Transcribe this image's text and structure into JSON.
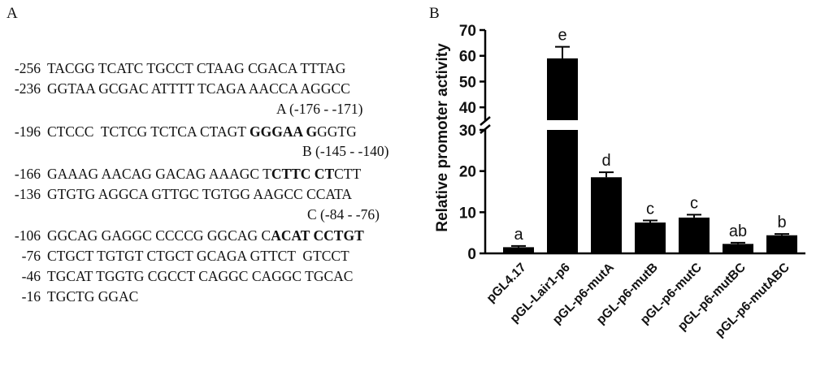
{
  "panel_a": {
    "label": "A",
    "lines": [
      {
        "pos": "-256",
        "segments": [
          {
            "t": "TACGG TCATC TGCCT CTAAG CGACA TTTAG",
            "b": false
          }
        ]
      },
      {
        "pos": "-236",
        "segments": [
          {
            "t": "GGTAA GCGAC ATTTT TCAGA AACCA AGGCC",
            "b": false
          }
        ]
      },
      {
        "pos": "-196",
        "segments": [
          {
            "t": "CTCCC  TCTCG TCTCA CTAGT ",
            "b": false
          },
          {
            "t": "GGGAA G",
            "b": true
          },
          {
            "t": "GGTG",
            "b": false
          }
        ]
      },
      {
        "pos": "-166",
        "segments": [
          {
            "t": "GAAAG AACAG GACAG AAAGC T",
            "b": false
          },
          {
            "t": "CTTC CT",
            "b": true
          },
          {
            "t": "CTT",
            "b": false
          }
        ]
      },
      {
        "pos": "-136",
        "segments": [
          {
            "t": "GTGTG AGGCA GTTGC TGTGG AAGCC CCATA",
            "b": false
          }
        ]
      },
      {
        "pos": "-106",
        "segments": [
          {
            "t": "GGCAG GAGGC CCCCG GGCAG C",
            "b": false
          },
          {
            "t": "ACAT CCTGT",
            "b": true
          }
        ]
      },
      {
        "pos": "-76",
        "segments": [
          {
            "t": "CTGCT TGTGT CTGCT GCAGA GTTCT  GTCCT",
            "b": false
          }
        ]
      },
      {
        "pos": "-46",
        "segments": [
          {
            "t": "TGCAT TGGTG CGCCT CAGGC CAGGC TGCAC",
            "b": false
          }
        ]
      },
      {
        "pos": "-16",
        "segments": [
          {
            "t": "TGCTG GGAC",
            "b": false
          }
        ]
      }
    ],
    "site_notes": [
      "A (-176 - -171)",
      "B (-145 - -140)",
      "C (-84 - -76)"
    ]
  },
  "panel_b": {
    "label": "B"
  },
  "chart_data": {
    "type": "bar",
    "ylabel": "Relative promoter activity",
    "categories": [
      "pGL4.17",
      "pGL-Lair1-p6",
      "pGL-p6-mutA",
      "pGL-p6-mutB",
      "pGL-p6-mutC",
      "pGL-p6-mutBC",
      "pGL-p6-mutABC"
    ],
    "values": [
      1.5,
      59,
      18.5,
      7.5,
      8.7,
      2.3,
      4.4
    ],
    "errors": [
      0.3,
      4.5,
      1.2,
      0.5,
      0.7,
      0.3,
      0.3
    ],
    "significance_letters": [
      "a",
      "e",
      "d",
      "c",
      "c",
      "ab",
      "b"
    ],
    "axis_break": {
      "lower": [
        0,
        30
      ],
      "upper": [
        35,
        70
      ]
    },
    "lower_ticks": [
      0,
      10,
      20,
      30
    ],
    "upper_ticks": [
      40,
      50,
      60,
      70
    ],
    "bar_color": "#000000",
    "grid": false
  }
}
